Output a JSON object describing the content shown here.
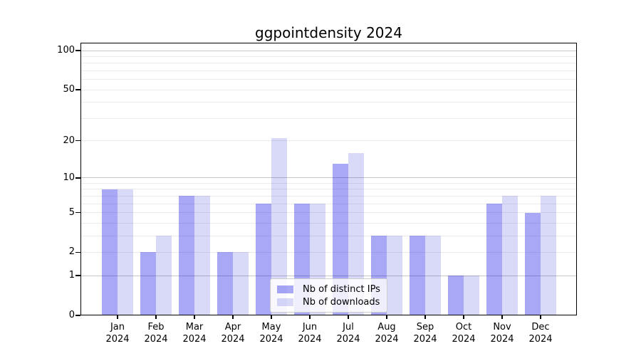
{
  "chart_data": {
    "type": "bar",
    "title": "ggpointdensity 2024",
    "scale": "log1p",
    "categories": [
      {
        "month": "Jan",
        "year": "2024"
      },
      {
        "month": "Feb",
        "year": "2024"
      },
      {
        "month": "Mar",
        "year": "2024"
      },
      {
        "month": "Apr",
        "year": "2024"
      },
      {
        "month": "May",
        "year": "2024"
      },
      {
        "month": "Jun",
        "year": "2024"
      },
      {
        "month": "Jul",
        "year": "2024"
      },
      {
        "month": "Aug",
        "year": "2024"
      },
      {
        "month": "Sep",
        "year": "2024"
      },
      {
        "month": "Oct",
        "year": "2024"
      },
      {
        "month": "Nov",
        "year": "2024"
      },
      {
        "month": "Dec",
        "year": "2024"
      }
    ],
    "series": [
      {
        "name": "Nb of distinct IPs",
        "color": "rgba(0,0,230,0.34)",
        "values": [
          8,
          2,
          7,
          2,
          6,
          6,
          13,
          3,
          3,
          1,
          6,
          5
        ]
      },
      {
        "name": "Nb of downloads",
        "color": "rgba(0,0,210,0.15)",
        "values": [
          8,
          3,
          7,
          2,
          21,
          6,
          16,
          3,
          3,
          1,
          7,
          7
        ]
      }
    ],
    "y_ticks": [
      0,
      1,
      2,
      5,
      10,
      20,
      50,
      100
    ],
    "grid_major": [
      1,
      10,
      100
    ],
    "grid_minor": [
      2,
      3,
      4,
      5,
      6,
      7,
      8,
      9,
      20,
      30,
      40,
      50,
      60,
      70,
      80,
      90
    ],
    "ylim": [
      0,
      115
    ],
    "legend_position": "lower center",
    "colors": {
      "grid_major": "#c6c6c6",
      "grid_minor": "#ebebeb",
      "axis": "#000000",
      "legend_border": "#cccccc",
      "legend_bg": "rgba(255,255,255,0.8)",
      "text": "#000000"
    }
  }
}
